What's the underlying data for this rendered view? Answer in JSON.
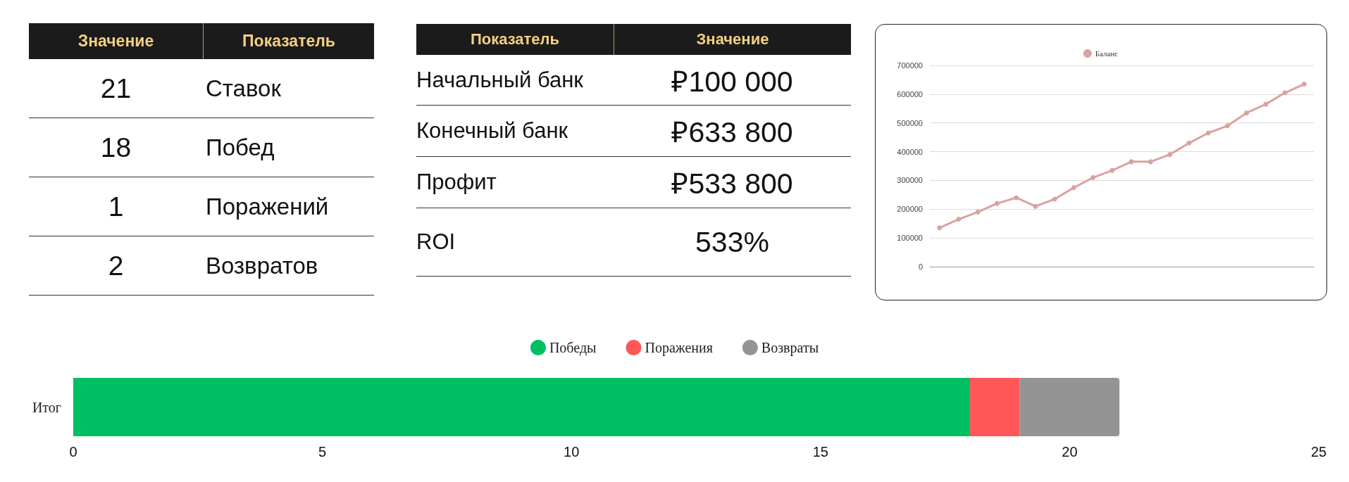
{
  "chart_data": [
    {
      "type": "other",
      "categories": [
        "Значение",
        "Показатель"
      ],
      "cell_labels": [
        [
          "21",
          "Ставок"
        ],
        [
          "18",
          "Побед"
        ],
        [
          "1",
          "Поражений"
        ],
        [
          "2",
          "Возвратов"
        ]
      ]
    },
    {
      "type": "other",
      "categories": [
        "Показатель",
        "Значение"
      ],
      "cell_labels": [
        [
          "Начальный банк",
          "₽100 000"
        ],
        [
          "Конечный банк",
          "₽633 800"
        ],
        [
          "Профит",
          "₽533 800"
        ],
        [
          "ROI",
          "533%"
        ]
      ]
    },
    {
      "type": "line",
      "categories": [
        null,
        null,
        null,
        null,
        null,
        null,
        null,
        null,
        null,
        null,
        null,
        null,
        null,
        null,
        null,
        null,
        null,
        null,
        null,
        null
      ],
      "series": [
        {
          "name": "Баланс",
          "color": "#d9a3a0",
          "values": [
            135000,
            165000,
            190000,
            220000,
            240000,
            210000,
            235000,
            275000,
            310000,
            335000,
            365000,
            365000,
            390000,
            430000,
            465000,
            490000,
            535000,
            565000,
            605000,
            635000
          ]
        }
      ],
      "ylim": [
        0,
        700000
      ],
      "yticks": [
        0,
        100000,
        200000,
        300000,
        400000,
        500000,
        600000,
        700000
      ],
      "grid": "y",
      "legend": "top",
      "marker": "circle",
      "line_style": "solid"
    },
    {
      "type": "bar",
      "orientation": "horizontal",
      "stacked": true,
      "categories": [
        "Итог"
      ],
      "series": [
        {
          "name": "Победы",
          "color": "#00bf63",
          "values": [
            18
          ]
        },
        {
          "name": "Поражения",
          "color": "#ff5757",
          "values": [
            1
          ]
        },
        {
          "name": "Возвраты",
          "color": "#949494",
          "values": [
            2
          ]
        }
      ],
      "xlim": [
        0,
        25
      ],
      "xticks": [
        0,
        5,
        10,
        15,
        20,
        25
      ],
      "legend": "top"
    }
  ]
}
